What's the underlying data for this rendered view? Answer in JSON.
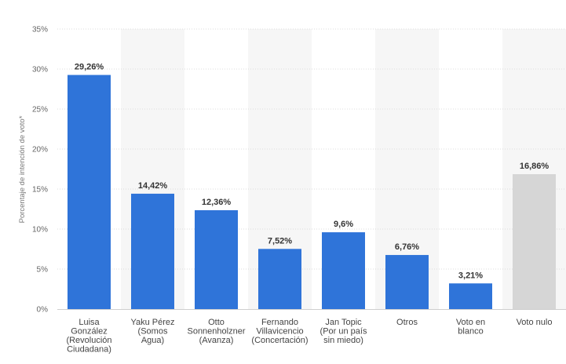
{
  "chart_data": {
    "type": "bar",
    "title": "",
    "xlabel": "",
    "ylabel": "Porcentaje de intención de voto*",
    "ylim": [
      0,
      35
    ],
    "yticks": [
      0,
      5,
      10,
      15,
      20,
      25,
      30,
      35
    ],
    "ytick_suffix": "%",
    "grid": true,
    "categories": [
      [
        "Luisa",
        "González",
        "(Revolución",
        "Ciudadana)"
      ],
      [
        "Yaku Pérez",
        "(Somos",
        "Agua)"
      ],
      [
        "Otto",
        "Sonnenholzner",
        "(Avanza)"
      ],
      [
        "Fernando",
        "Villavicencio",
        "(Concertación)"
      ],
      [
        "Jan Topic",
        "(Por un país",
        "sin miedo)"
      ],
      [
        "Otros"
      ],
      [
        "Voto en",
        "blanco"
      ],
      [
        "Voto nulo"
      ]
    ],
    "values": [
      29.26,
      14.42,
      12.36,
      7.52,
      9.6,
      6.76,
      3.21,
      16.86
    ],
    "value_labels": [
      "29,26%",
      "14,42%",
      "12,36%",
      "7,52%",
      "9,6%",
      "6,76%",
      "3,21%",
      "16,86%"
    ],
    "colors": [
      "#2f74d9",
      "#2f74d9",
      "#2f74d9",
      "#2f74d9",
      "#2f74d9",
      "#2f74d9",
      "#2f74d9",
      "#d6d6d6"
    ],
    "band_color": "#f6f6f6",
    "grid_color": "#dcdcdc"
  }
}
